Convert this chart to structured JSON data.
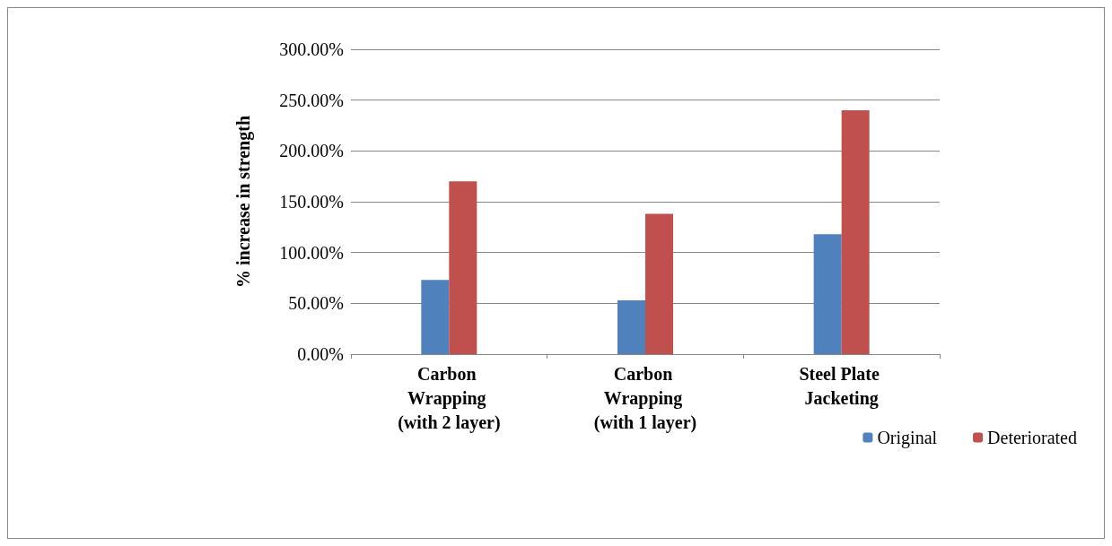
{
  "chart_data": {
    "type": "bar",
    "ylabel": "% increase in strength",
    "categories": [
      "Carbon Wrapping (with 2 layer)",
      "Carbon Wrapping (with 1 layer)",
      "Steel Plate Jacketing"
    ],
    "series": [
      {
        "name": "Original",
        "color": "#4f81bd",
        "values": [
          73,
          53,
          118
        ]
      },
      {
        "name": "Deteriorated",
        "color": "#c0504d",
        "values": [
          170,
          138,
          240
        ]
      }
    ],
    "ylim": [
      0,
      300
    ],
    "yticks": [
      {
        "value": 0,
        "label": "0.00%"
      },
      {
        "value": 50,
        "label": "50.00%"
      },
      {
        "value": 100,
        "label": "100.00%"
      },
      {
        "value": 150,
        "label": "150.00%"
      },
      {
        "value": 200,
        "label": "200.00%"
      },
      {
        "value": 250,
        "label": "250.00%"
      },
      {
        "value": 300,
        "label": "300.00%"
      }
    ],
    "grid": "y",
    "legend": "bottom right"
  }
}
